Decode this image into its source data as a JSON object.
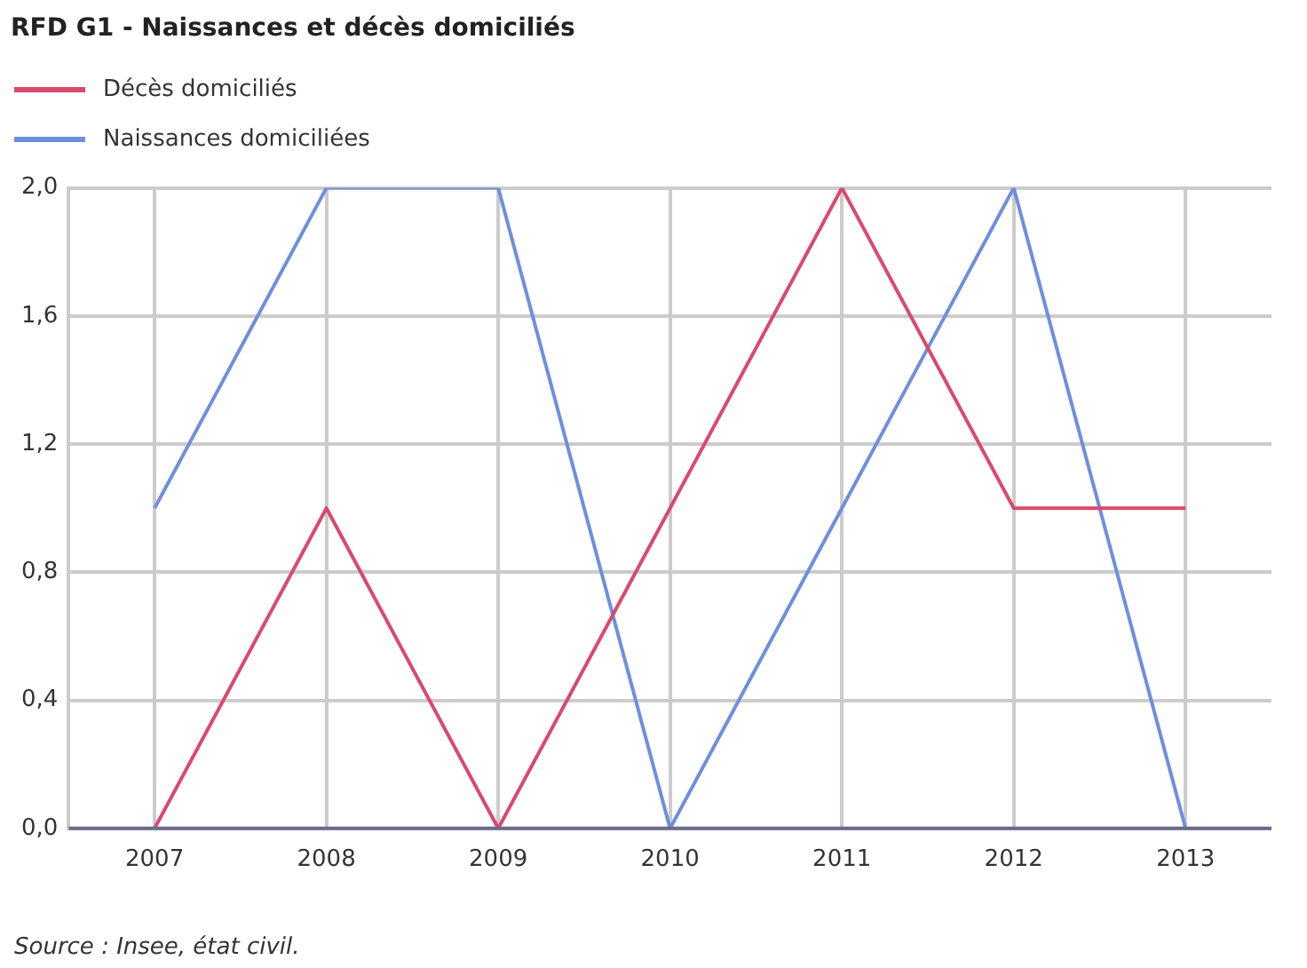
{
  "chart_data": {
    "type": "line",
    "title": "RFD G1 - Naissances et décès domiciliés",
    "categories": [
      "2007",
      "2008",
      "2009",
      "2010",
      "2011",
      "2012",
      "2013"
    ],
    "series": [
      {
        "name": "Décès domiciliés",
        "color": "#d94a6e",
        "values": [
          0,
          1,
          0,
          1,
          2,
          1,
          1
        ]
      },
      {
        "name": "Naissances domiciliées",
        "color": "#6f8fdc",
        "values": [
          1,
          2,
          2,
          0,
          1,
          2,
          0
        ]
      }
    ],
    "ylim": [
      0,
      2
    ],
    "yticks": [
      {
        "value": 0,
        "label": "0,0"
      },
      {
        "value": 0.4,
        "label": "0,4"
      },
      {
        "value": 0.8,
        "label": "0,8"
      },
      {
        "value": 1.2,
        "label": "1,2"
      },
      {
        "value": 1.6,
        "label": "1,6"
      },
      {
        "value": 2,
        "label": "2,0"
      }
    ],
    "grid": true,
    "legend": "top left",
    "marker": "none",
    "line_style": "solid",
    "annotations": [
      "Source : Insee, état civil."
    ]
  }
}
